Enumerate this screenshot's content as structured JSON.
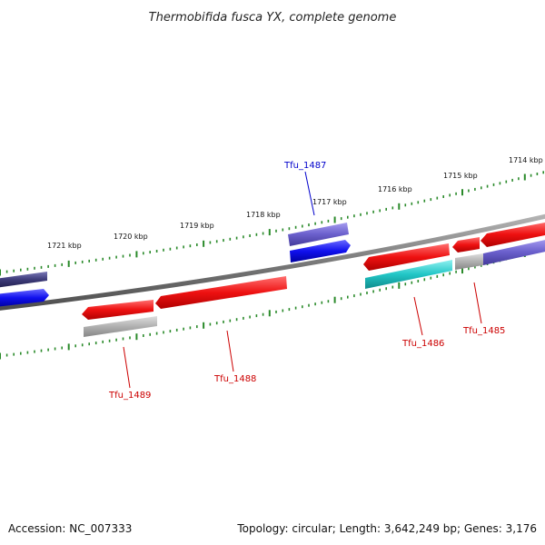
{
  "title": "Thermobifida fusca YX, complete genome",
  "footer": {
    "accession": "Accession: NC_007333",
    "summary": "Topology: circular; Length: 3,642,249 bp; Genes: 3,176"
  },
  "colors": {
    "backbone": "#7a7a7a",
    "tick": "#2a8a2a",
    "gene_red": "#ee1111",
    "gene_blue": "#1010ee",
    "gene_purple": "#6a5fcc",
    "gene_navy": "#3c3a78",
    "gene_cyan": "#22c6c6",
    "gene_grey": "#b0b0b0",
    "label_red": "#cc0000",
    "label_blue": "#0000cc"
  },
  "scale": {
    "tick_labels": [
      "1721 kbp",
      "1720 kbp",
      "1719 kbp",
      "1718 kbp",
      "1717 kbp",
      "1716 kbp",
      "1715 kbp",
      "1714 kbp"
    ]
  },
  "genes": [
    {
      "id": "Tfu_1485",
      "label": "Tfu_1485",
      "strand": "minus",
      "color": "label_red"
    },
    {
      "id": "Tfu_1486",
      "label": "Tfu_1486",
      "strand": "minus",
      "color": "label_red"
    },
    {
      "id": "Tfu_1487",
      "label": "Tfu_1487",
      "strand": "plus",
      "color": "label_blue"
    },
    {
      "id": "Tfu_1488",
      "label": "Tfu_1488",
      "strand": "minus",
      "color": "label_red"
    },
    {
      "id": "Tfu_1489",
      "label": "Tfu_1489",
      "strand": "minus",
      "color": "label_red"
    }
  ]
}
